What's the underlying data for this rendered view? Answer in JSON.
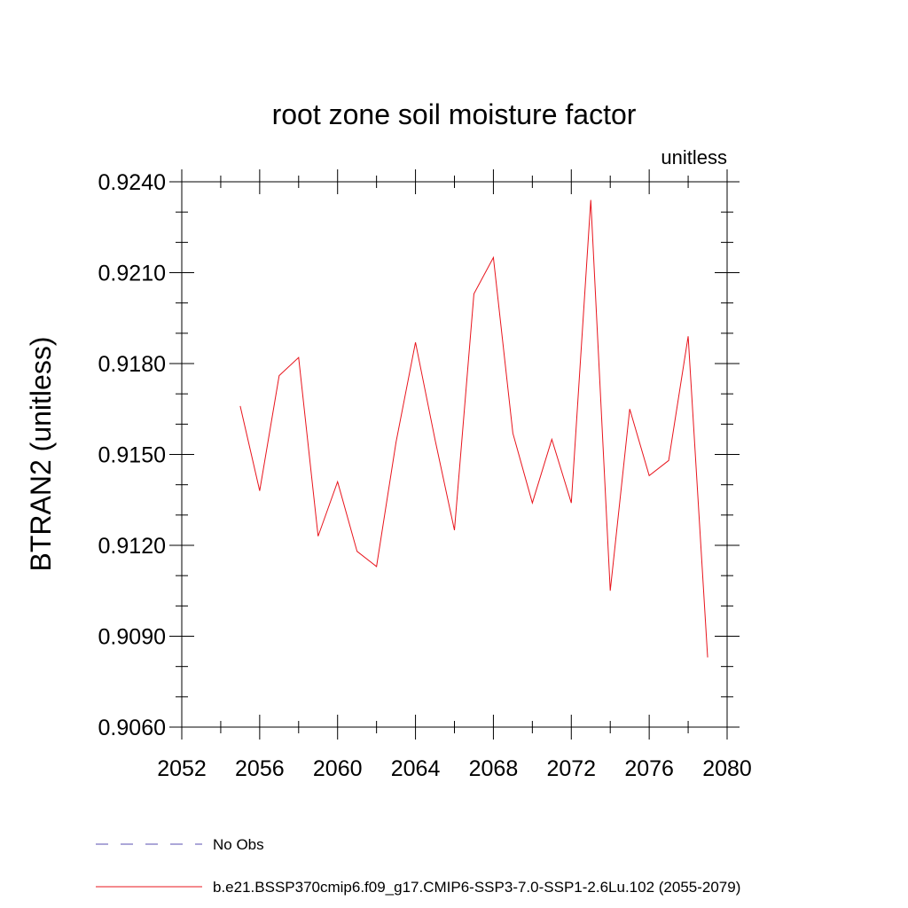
{
  "chart_data": {
    "type": "line",
    "title": "root zone soil moisture factor",
    "units_label": "unitless",
    "ylabel": "BTRAN2  (unitless)",
    "xlabel": "",
    "xlim": [
      2052,
      2080
    ],
    "ylim": [
      0.906,
      0.924
    ],
    "x_major_ticks": [
      2052,
      2056,
      2060,
      2064,
      2068,
      2072,
      2076,
      2080
    ],
    "x_minor_ticks": [
      2054,
      2058,
      2062,
      2066,
      2070,
      2074,
      2078
    ],
    "y_major_ticks": [
      0.906,
      0.909,
      0.912,
      0.915,
      0.918,
      0.921,
      0.924
    ],
    "x_tick_labels": [
      "2052",
      "2056",
      "2060",
      "2064",
      "2068",
      "2072",
      "2076",
      "2080"
    ],
    "y_tick_labels": [
      "0.9060",
      "0.9090",
      "0.9120",
      "0.9150",
      "0.9180",
      "0.9210",
      "0.9240"
    ],
    "grid": false,
    "legend_placement": "bottom",
    "legend": [
      {
        "label": "No Obs",
        "color": "#5a4fb0",
        "style": "dashed"
      },
      {
        "label": "b.e21.BSSP370cmip6.f09_g17.CMIP6-SSP3-7.0-SSP1-2.6Lu.102 (2055-2079)",
        "color": "#e8141c",
        "style": "solid"
      }
    ],
    "series": [
      {
        "color": "#e8141c",
        "x": [
          2055,
          2056,
          2057,
          2058,
          2059,
          2060,
          2061,
          2062,
          2063,
          2064,
          2065,
          2066,
          2067,
          2068,
          2069,
          2070,
          2071,
          2072,
          2073,
          2074,
          2075,
          2076,
          2077,
          2078,
          2079
        ],
        "values": [
          0.9166,
          0.9138,
          0.9176,
          0.9182,
          0.9123,
          0.9141,
          0.9118,
          0.9113,
          0.9154,
          0.9187,
          0.9155,
          0.9125,
          0.9203,
          0.9215,
          0.9157,
          0.9134,
          0.9155,
          0.9134,
          0.9234,
          0.9105,
          0.9165,
          0.9143,
          0.9148,
          0.9189,
          0.9083
        ]
      }
    ]
  }
}
